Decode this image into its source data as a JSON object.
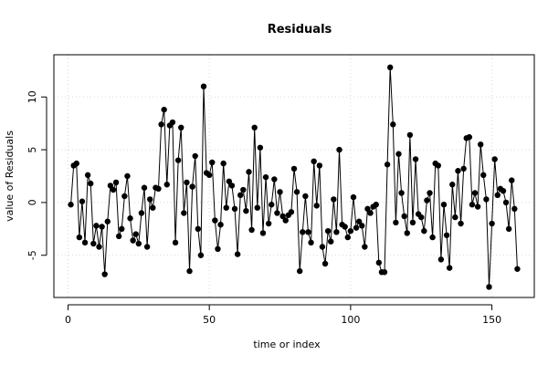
{
  "chart_data": {
    "type": "line",
    "title": "Residuals",
    "xlabel": "time or index",
    "ylabel": "value of Residuals",
    "xlim": [
      -5,
      165
    ],
    "ylim": [
      -9,
      14
    ],
    "xticks": [
      0,
      50,
      100,
      150
    ],
    "yticks": [
      -5,
      0,
      5,
      10
    ],
    "grid": true,
    "marker": "filled-circle",
    "series": [
      {
        "values": [
          -0.2,
          3.5,
          3.7,
          -3.3,
          0.1,
          -3.8,
          2.6,
          1.8,
          -3.9,
          -2.2,
          -4.2,
          -2.3,
          -6.8,
          -1.8,
          1.6,
          1.2,
          1.9,
          -3.2,
          -2.5,
          0.6,
          2.5,
          -1.5,
          -3.6,
          -3.0,
          -3.9,
          -1.0,
          1.4,
          -4.2,
          0.3,
          -0.5,
          1.4,
          1.3,
          7.4,
          8.8,
          1.7,
          7.3,
          7.6,
          -3.8,
          4.0,
          7.1,
          -1.0,
          1.9,
          -6.5,
          1.5,
          4.4,
          -2.5,
          -5.0,
          11.0,
          2.8,
          2.6,
          3.8,
          -1.7,
          -4.4,
          -2.1,
          3.7,
          -0.5,
          2.0,
          1.6,
          -0.6,
          -4.9,
          0.7,
          1.2,
          -0.8,
          2.9,
          -2.6,
          7.1,
          -0.5,
          5.2,
          -2.9,
          2.4,
          -2.0,
          -0.2,
          2.2,
          -1.0,
          1.0,
          -1.3,
          -1.7,
          -1.2,
          -0.9,
          3.2,
          1.0,
          -6.5,
          -2.8,
          0.6,
          -2.8,
          -3.8,
          3.9,
          -0.3,
          3.5,
          -4.2,
          -5.8,
          -2.7,
          -3.7,
          0.3,
          -2.8,
          5.0,
          -2.1,
          -2.3,
          -3.3,
          -2.7,
          0.5,
          -2.4,
          -1.8,
          -2.2,
          -4.2,
          -0.6,
          -1.0,
          -0.4,
          -0.2,
          -5.7,
          -6.6,
          -6.6,
          3.6,
          12.8,
          7.4,
          -1.9,
          4.6,
          0.9,
          -1.3,
          -2.9,
          6.4,
          -1.9,
          4.1,
          -1.1,
          -1.4,
          -2.7,
          0.2,
          0.9,
          -3.3,
          3.7,
          3.5,
          -5.4,
          -0.2,
          -3.1,
          -6.2,
          1.7,
          -1.4,
          3.0,
          -2.0,
          3.2,
          6.1,
          6.2,
          -0.2,
          0.9,
          -0.4,
          5.5,
          2.6,
          0.3,
          -8.0,
          -2.0,
          4.1,
          0.7,
          1.3,
          1.1,
          0.0,
          -2.5,
          2.1,
          -0.6,
          -6.3
        ]
      }
    ]
  }
}
